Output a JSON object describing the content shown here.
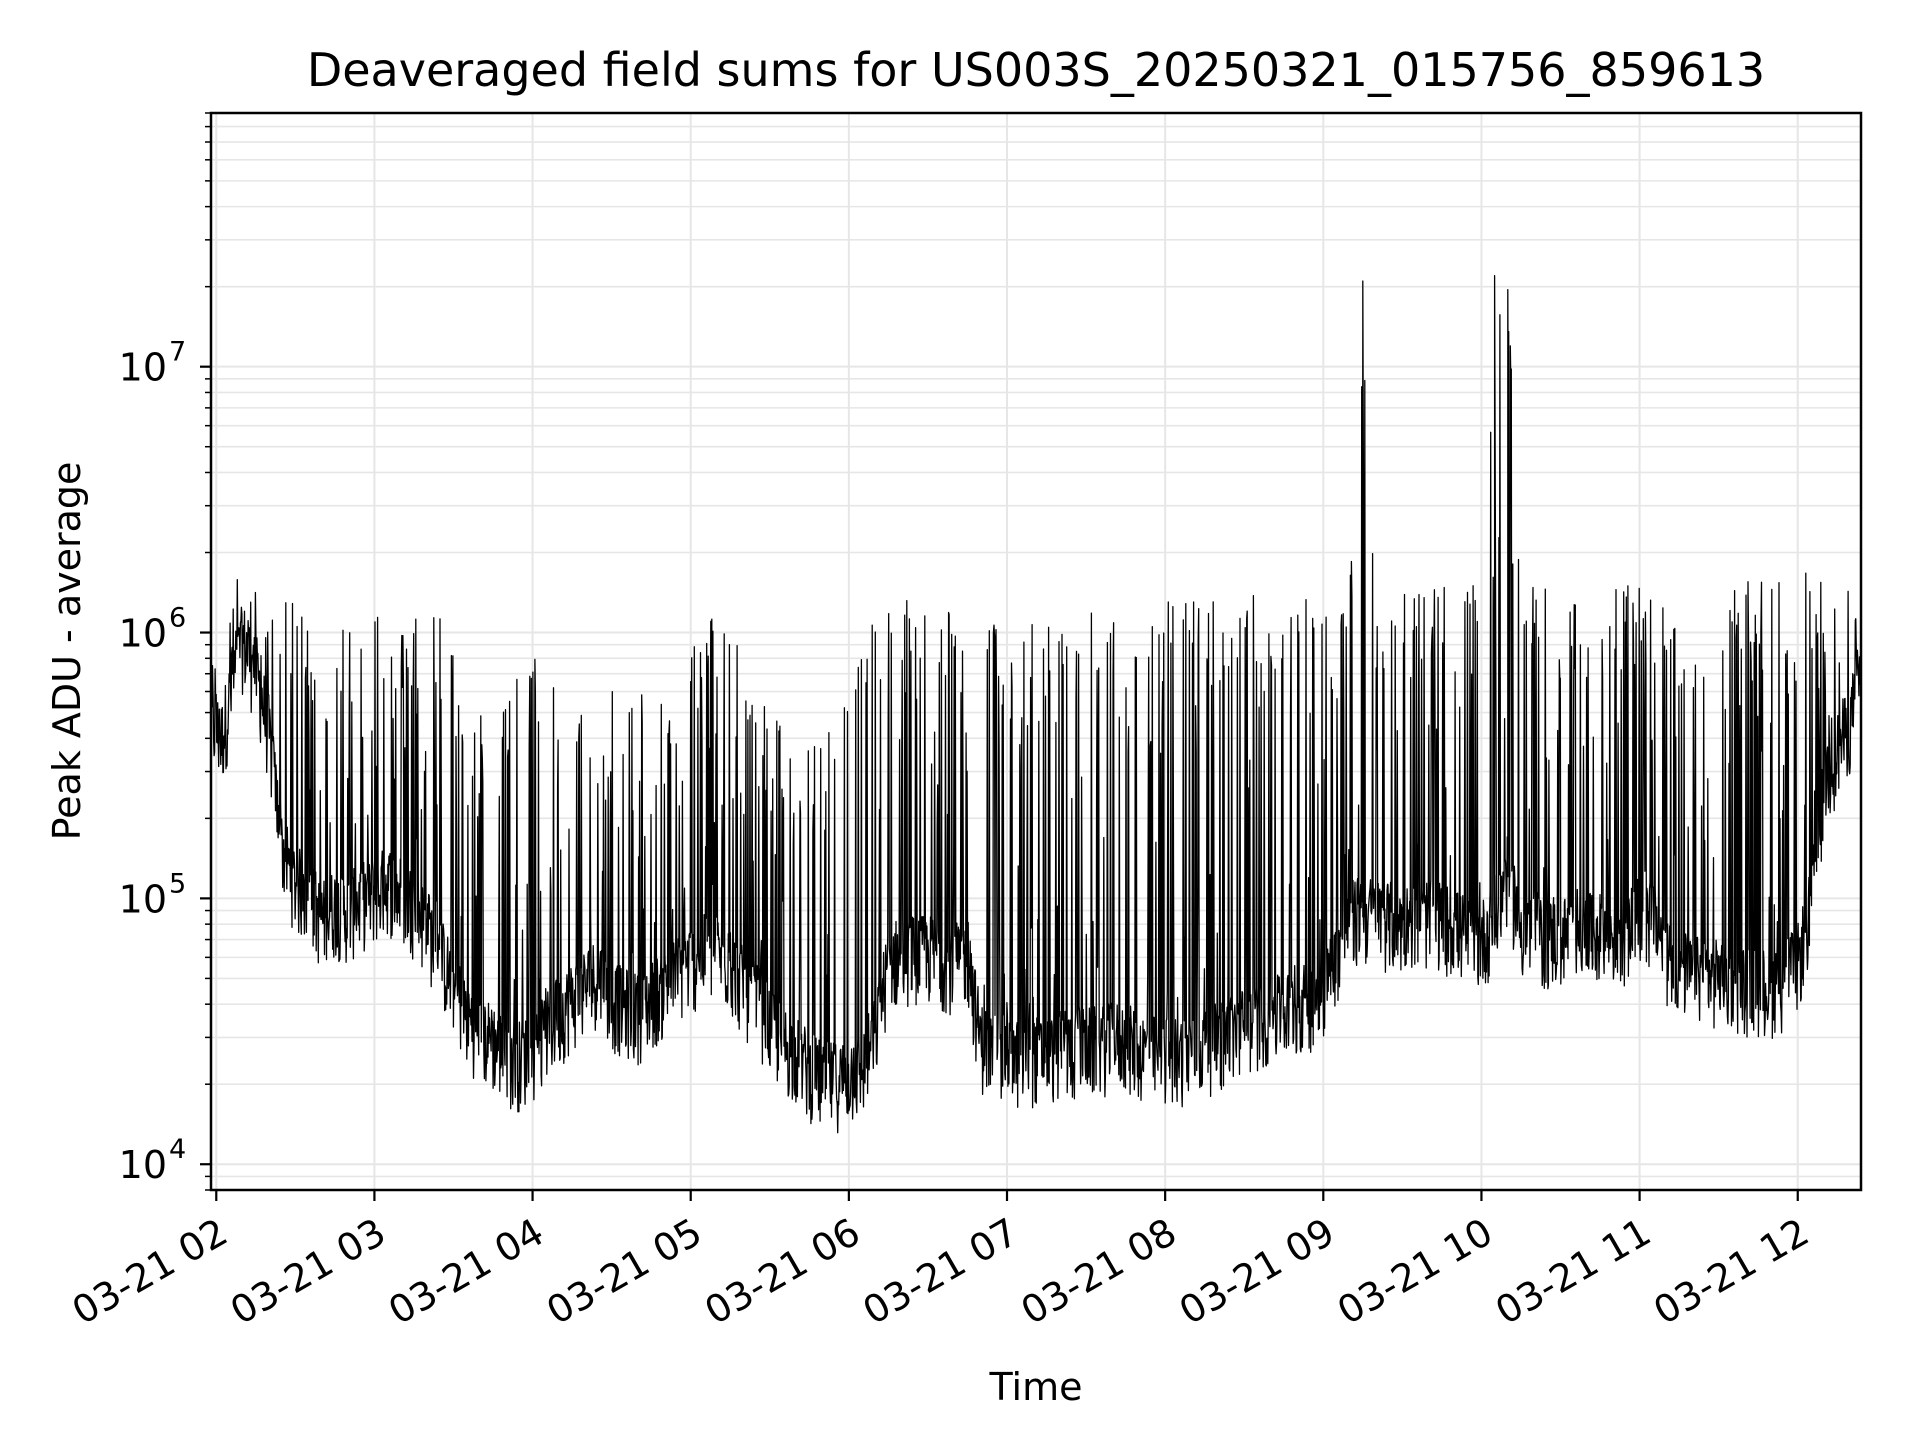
{
  "chart_data": {
    "type": "line",
    "title": "Deaveraged field sums for US003S_20250321_015756_859613",
    "xlabel": "Time",
    "ylabel": "Peak ADU - average",
    "y_scale": "log",
    "ylim": [
      8000,
      90000000
    ],
    "xlim": [
      "2025-03-21 01:58",
      "2025-03-21 12:24"
    ],
    "grid": true,
    "line_color": "#000000",
    "grid_color": "#e6e6e6",
    "x_ticks": [
      {
        "t": "2025-03-21 02:00",
        "label": "03-21 02"
      },
      {
        "t": "2025-03-21 03:00",
        "label": "03-21 03"
      },
      {
        "t": "2025-03-21 04:00",
        "label": "03-21 04"
      },
      {
        "t": "2025-03-21 05:00",
        "label": "03-21 05"
      },
      {
        "t": "2025-03-21 06:00",
        "label": "03-21 06"
      },
      {
        "t": "2025-03-21 07:00",
        "label": "03-21 07"
      },
      {
        "t": "2025-03-21 08:00",
        "label": "03-21 08"
      },
      {
        "t": "2025-03-21 09:00",
        "label": "03-21 09"
      },
      {
        "t": "2025-03-21 10:00",
        "label": "03-21 10"
      },
      {
        "t": "2025-03-21 11:00",
        "label": "03-21 11"
      },
      {
        "t": "2025-03-21 12:00",
        "label": "03-21 12"
      }
    ],
    "y_ticks": [
      {
        "value": 10000,
        "base": "10",
        "exp": "4"
      },
      {
        "value": 100000,
        "base": "10",
        "exp": "5"
      },
      {
        "value": 1000000,
        "base": "10",
        "exp": "6"
      },
      {
        "value": 10000000,
        "base": "10",
        "exp": "7"
      }
    ],
    "series": [
      {
        "x": [
          "2025-03-21 01:58",
          "2025-03-21 02:02",
          "2025-03-21 02:06",
          "2025-03-21 02:10",
          "2025-03-21 02:15",
          "2025-03-21 02:20",
          "2025-03-21 02:25",
          "2025-03-21 02:30",
          "2025-03-21 02:35",
          "2025-03-21 02:40",
          "2025-03-21 02:45",
          "2025-03-21 02:50",
          "2025-03-21 02:55",
          "2025-03-21 03:00",
          "2025-03-21 03:05",
          "2025-03-21 03:10",
          "2025-03-21 03:15",
          "2025-03-21 03:20",
          "2025-03-21 03:25",
          "2025-03-21 03:30",
          "2025-03-21 03:35",
          "2025-03-21 03:40",
          "2025-03-21 03:45",
          "2025-03-21 03:50",
          "2025-03-21 03:55",
          "2025-03-21 04:00",
          "2025-03-21 04:05",
          "2025-03-21 04:10",
          "2025-03-21 04:15",
          "2025-03-21 04:20",
          "2025-03-21 04:25",
          "2025-03-21 04:30",
          "2025-03-21 04:35",
          "2025-03-21 04:40",
          "2025-03-21 04:45",
          "2025-03-21 04:50",
          "2025-03-21 04:55",
          "2025-03-21 05:00",
          "2025-03-21 05:05",
          "2025-03-21 05:10",
          "2025-03-21 05:15",
          "2025-03-21 05:20",
          "2025-03-21 05:25",
          "2025-03-21 05:30",
          "2025-03-21 05:35",
          "2025-03-21 05:40",
          "2025-03-21 05:45",
          "2025-03-21 05:50",
          "2025-03-21 05:55",
          "2025-03-21 06:00",
          "2025-03-21 06:05",
          "2025-03-21 06:10",
          "2025-03-21 06:15",
          "2025-03-21 06:20",
          "2025-03-21 06:25",
          "2025-03-21 06:30",
          "2025-03-21 06:35",
          "2025-03-21 06:40",
          "2025-03-21 06:45",
          "2025-03-21 06:50",
          "2025-03-21 06:55",
          "2025-03-21 07:00",
          "2025-03-21 07:05",
          "2025-03-21 07:10",
          "2025-03-21 07:15",
          "2025-03-21 07:20",
          "2025-03-21 07:25",
          "2025-03-21 07:30",
          "2025-03-21 07:35",
          "2025-03-21 07:40",
          "2025-03-21 07:45",
          "2025-03-21 07:50",
          "2025-03-21 07:55",
          "2025-03-21 08:00",
          "2025-03-21 08:05",
          "2025-03-21 08:10",
          "2025-03-21 08:15",
          "2025-03-21 08:20",
          "2025-03-21 08:25",
          "2025-03-21 08:30",
          "2025-03-21 08:35",
          "2025-03-21 08:40",
          "2025-03-21 08:45",
          "2025-03-21 08:50",
          "2025-03-21 08:55",
          "2025-03-21 09:00",
          "2025-03-21 09:05",
          "2025-03-21 09:10",
          "2025-03-21 09:15",
          "2025-03-21 09:20",
          "2025-03-21 09:25",
          "2025-03-21 09:30",
          "2025-03-21 09:35",
          "2025-03-21 09:40",
          "2025-03-21 09:45",
          "2025-03-21 09:50",
          "2025-03-21 09:55",
          "2025-03-21 10:00",
          "2025-03-21 10:05",
          "2025-03-21 10:10",
          "2025-03-21 10:15",
          "2025-03-21 10:20",
          "2025-03-21 10:25",
          "2025-03-21 10:30",
          "2025-03-21 10:35",
          "2025-03-21 10:40",
          "2025-03-21 10:45",
          "2025-03-21 10:50",
          "2025-03-21 10:55",
          "2025-03-21 11:00",
          "2025-03-21 11:05",
          "2025-03-21 11:10",
          "2025-03-21 11:15",
          "2025-03-21 11:20",
          "2025-03-21 11:25",
          "2025-03-21 11:30",
          "2025-03-21 11:35",
          "2025-03-21 11:40",
          "2025-03-21 11:45",
          "2025-03-21 11:50",
          "2025-03-21 11:55",
          "2025-03-21 12:00",
          "2025-03-21 12:05",
          "2025-03-21 12:10",
          "2025-03-21 12:15",
          "2025-03-21 12:20",
          "2025-03-21 12:24"
        ],
        "baseline": [
          450000,
          380000,
          600000,
          900000,
          700000,
          400000,
          150000,
          110000,
          100000,
          80000,
          90000,
          85000,
          95000,
          100000,
          110000,
          100000,
          90000,
          75000,
          60000,
          45000,
          35000,
          30000,
          28000,
          25000,
          24000,
          26000,
          30000,
          35000,
          40000,
          45000,
          50000,
          40000,
          38000,
          36000,
          40000,
          45000,
          50000,
          55000,
          60000,
          60000,
          55000,
          45000,
          40000,
          32000,
          28000,
          25000,
          22000,
          20000,
          20000,
          21000,
          22000,
          30000,
          55000,
          60000,
          60000,
          60000,
          58000,
          55000,
          60000,
          28000,
          26000,
          25000,
          24000,
          25000,
          25000,
          26000,
          26000,
          27000,
          27000,
          28000,
          28000,
          26000,
          25000,
          25000,
          25000,
          26000,
          27000,
          28000,
          30000,
          32000,
          34000,
          35000,
          36000,
          38000,
          40000,
          45000,
          60000,
          80000,
          85000,
          82000,
          80000,
          78000,
          80000,
          82000,
          80000,
          75000,
          70000,
          68000,
          80000,
          120000,
          75000,
          70000,
          68000,
          70000,
          72000,
          72000,
          72000,
          70000,
          72000,
          85000,
          80000,
          60000,
          55000,
          50000,
          50000,
          48000,
          48000,
          46000,
          45000,
          45000,
          48000,
          55000,
          90000,
          260000,
          350000,
          450000,
          700000
        ],
        "peaks": [
          900000,
          1200000,
          1500000,
          1800000,
          1500000,
          1400000,
          1300000,
          1300000,
          1200000,
          1100000,
          1100000,
          1200000,
          1400000,
          1500000,
          1200000,
          1000000,
          1300000,
          1400000,
          1200000,
          900000,
          400000,
          500000,
          600000,
          700000,
          700000,
          800000,
          900000,
          700000,
          600000,
          700000,
          800000,
          700000,
          600000,
          600000,
          700000,
          500000,
          800000,
          900000,
          1100000,
          1300000,
          1200000,
          800000,
          600000,
          500000,
          500000,
          450000,
          400000,
          500000,
          500000,
          600000,
          900000,
          1200000,
          1400000,
          1300000,
          1500000,
          1700000,
          1500000,
          1300000,
          900000,
          1000000,
          1100000,
          1200000,
          1200000,
          1100000,
          1100000,
          1200000,
          1200000,
          1200000,
          1200000,
          1300000,
          1300000,
          1300000,
          1300000,
          1300000,
          1400000,
          1400000,
          1400000,
          1400000,
          1400000,
          1400000,
          1400000,
          1400000,
          1400000,
          1400000,
          1400000,
          1500000,
          1500000,
          1500000,
          21000000,
          1500000,
          1500000,
          1500000,
          1500000,
          1500000,
          1500000,
          1500000,
          1500000,
          1500000,
          22000000,
          19500000,
          1500000,
          1500000,
          1500000,
          1500000,
          1500000,
          1500000,
          1500000,
          1500000,
          1500000,
          1500000,
          1500000,
          1500000,
          1500000,
          1500000,
          1500000,
          1500000,
          1500000,
          1600000,
          1600000,
          1600000,
          1600000,
          1700000,
          1700000,
          1600000,
          1600000,
          1500000,
          1000000
        ]
      }
    ]
  }
}
